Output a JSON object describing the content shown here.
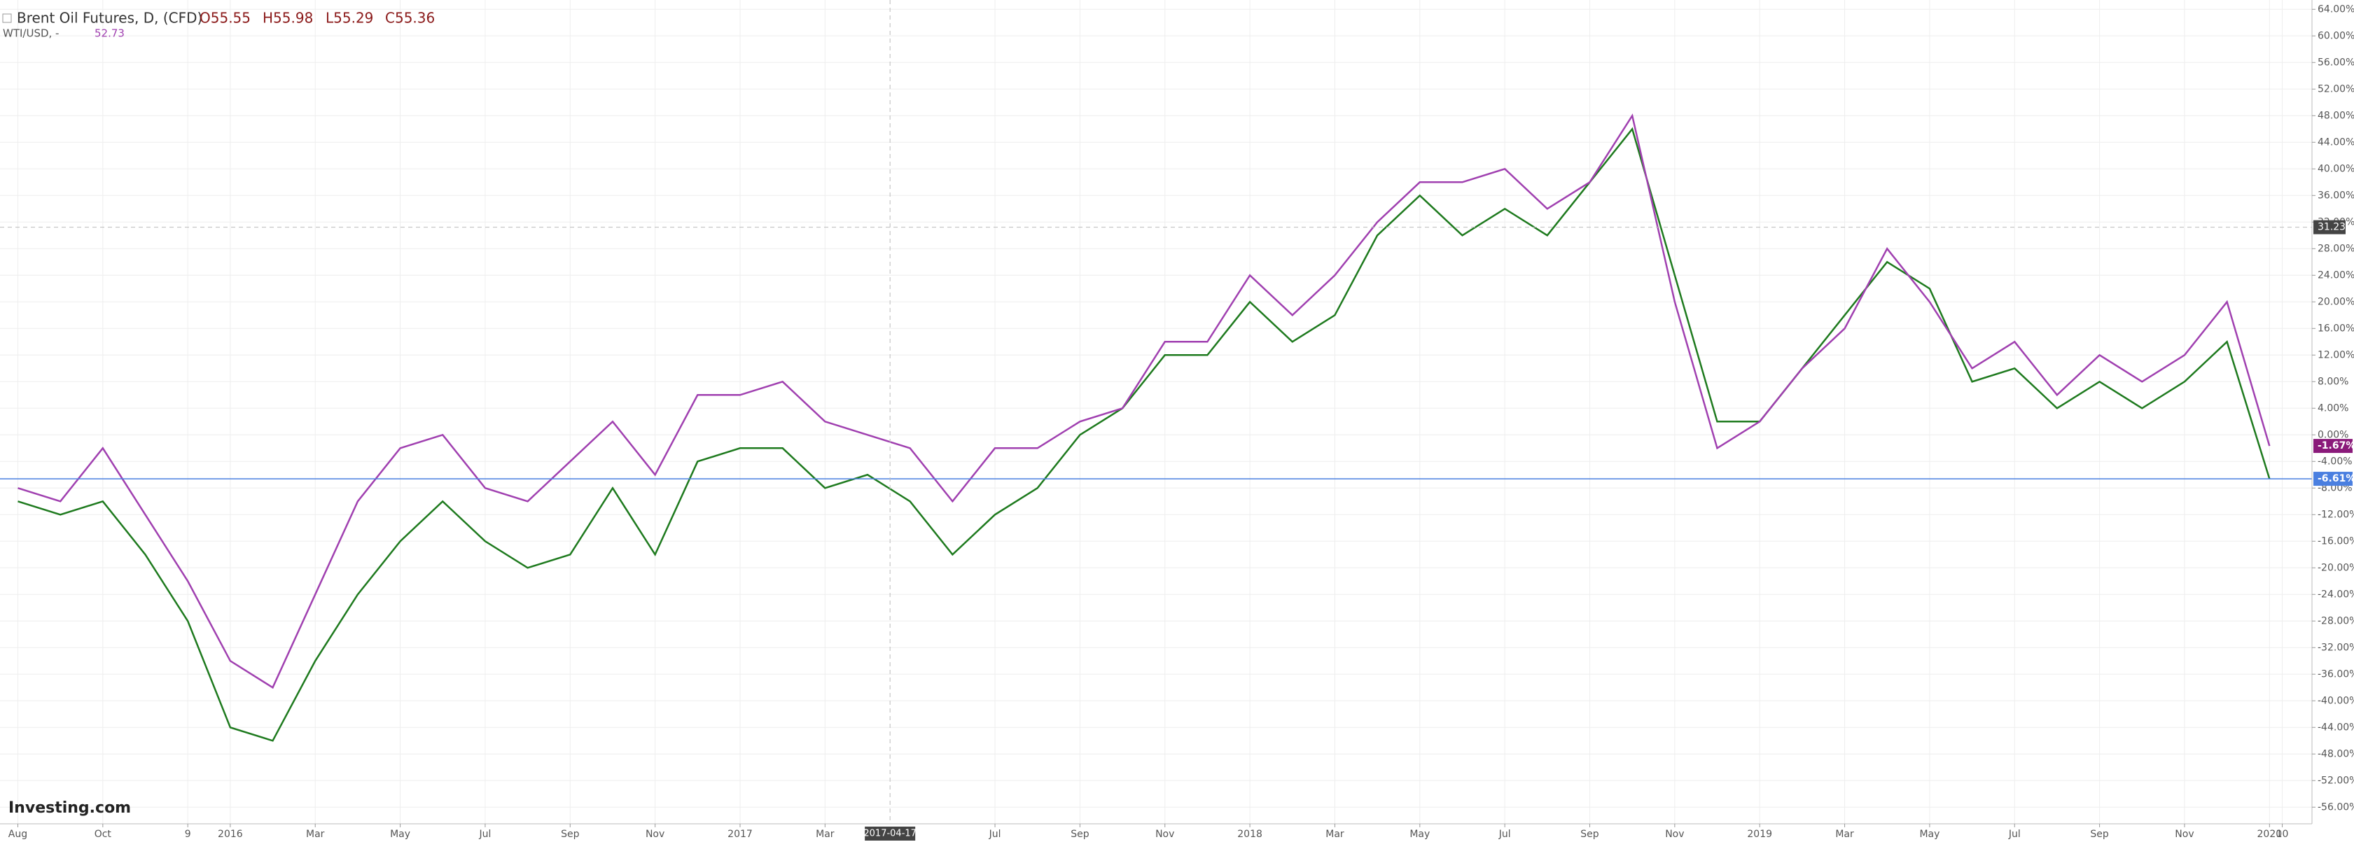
{
  "header": {
    "title": "Brent Oil Futures, D, (CFD)",
    "open": "O55.55",
    "high": "H55.98",
    "low": "L55.29",
    "close": "C55.36",
    "compare": "WTI/USD, -",
    "compare_value": "52.73",
    "brand": "Investing.com"
  },
  "chart_data": {
    "type": "line",
    "x": [
      0,
      1,
      2,
      3,
      4,
      5,
      6,
      7,
      8,
      9,
      10,
      11,
      12,
      13,
      14,
      15,
      16,
      17,
      18,
      19,
      20,
      21,
      22,
      23,
      24,
      25,
      26,
      27,
      28,
      29,
      30,
      31,
      32,
      33,
      34,
      35,
      36,
      37,
      38,
      39,
      40,
      41,
      42,
      43,
      44,
      45,
      46,
      47,
      48,
      49,
      50,
      51,
      52,
      53
    ],
    "series": [
      {
        "name": "Brent Oil Futures",
        "color": "#1e7a1e",
        "last_value_label": "-6.61%",
        "badge_color": "#4a7fe0",
        "values": [
          -10,
          -12,
          -10,
          -18,
          -28,
          -44,
          -46,
          -34,
          -24,
          -16,
          -10,
          -16,
          -20,
          -18,
          -8,
          -18,
          -4,
          -2,
          -2,
          -8,
          -6,
          -10,
          -18,
          -12,
          -8,
          0,
          4,
          12,
          12,
          20,
          14,
          18,
          30,
          36,
          30,
          34,
          30,
          38,
          46,
          24,
          2,
          2,
          10,
          18,
          26,
          22,
          8,
          10,
          4,
          8,
          4,
          8,
          14,
          -6.61
        ]
      },
      {
        "name": "WTI/USD",
        "color": "#a040b0",
        "last_value_label": "-1.67%",
        "badge_color": "#8a1a7a",
        "values": [
          -8,
          -10,
          -2,
          -12,
          -22,
          -34,
          -38,
          -24,
          -10,
          -2,
          0,
          -8,
          -10,
          -4,
          2,
          -6,
          6,
          6,
          8,
          2,
          0,
          -2,
          -10,
          -2,
          -2,
          2,
          4,
          14,
          14,
          24,
          18,
          24,
          32,
          38,
          38,
          40,
          34,
          38,
          48,
          20,
          -2,
          2,
          10,
          16,
          28,
          20,
          10,
          14,
          6,
          12,
          8,
          12,
          20,
          -1.67
        ]
      }
    ],
    "xlim": [
      -0.42,
      54.0
    ],
    "xticks": [
      {
        "value": 0,
        "label": "Aug"
      },
      {
        "value": 2,
        "label": "Oct"
      },
      {
        "value": 4,
        "label": "9"
      },
      {
        "value": 5,
        "label": "2016"
      },
      {
        "value": 7,
        "label": "Mar"
      },
      {
        "value": 9,
        "label": "May"
      },
      {
        "value": 11,
        "label": "Jul"
      },
      {
        "value": 13,
        "label": "Sep"
      },
      {
        "value": 15,
        "label": "Nov"
      },
      {
        "value": 17,
        "label": "2017"
      },
      {
        "value": 19,
        "label": "Mar"
      },
      {
        "value": 23,
        "label": "Jul"
      },
      {
        "value": 25,
        "label": "Sep"
      },
      {
        "value": 27,
        "label": "Nov"
      },
      {
        "value": 29,
        "label": "2018"
      },
      {
        "value": 31,
        "label": "Mar"
      },
      {
        "value": 33,
        "label": "May"
      },
      {
        "value": 35,
        "label": "Jul"
      },
      {
        "value": 37,
        "label": "Sep"
      },
      {
        "value": 39,
        "label": "Nov"
      },
      {
        "value": 41,
        "label": "2019"
      },
      {
        "value": 43,
        "label": "Mar"
      },
      {
        "value": 45,
        "label": "May"
      },
      {
        "value": 47,
        "label": "Jul"
      },
      {
        "value": 49,
        "label": "Sep"
      },
      {
        "value": 51,
        "label": "Nov"
      },
      {
        "value": 53,
        "label": "2020"
      },
      {
        "value": 53.3,
        "label": "10"
      }
    ],
    "ylim": [
      -58.5,
      65.4
    ],
    "yticks": [
      {
        "value": 64,
        "label": "64.00%"
      },
      {
        "value": 60,
        "label": "60.00%"
      },
      {
        "value": 56,
        "label": "56.00%"
      },
      {
        "value": 52,
        "label": "52.00%"
      },
      {
        "value": 48,
        "label": "48.00%"
      },
      {
        "value": 44,
        "label": "44.00%"
      },
      {
        "value": 40,
        "label": "40.00%"
      },
      {
        "value": 36,
        "label": "36.00%"
      },
      {
        "value": 32,
        "label": "32.00%"
      },
      {
        "value": 28,
        "label": "28.00%"
      },
      {
        "value": 24,
        "label": "24.00%"
      },
      {
        "value": 20,
        "label": "20.00%"
      },
      {
        "value": 16,
        "label": "16.00%"
      },
      {
        "value": 12,
        "label": "12.00%"
      },
      {
        "value": 8,
        "label": "8.00%"
      },
      {
        "value": 4,
        "label": "4.00%"
      },
      {
        "value": 0,
        "label": "0.00%"
      },
      {
        "value": -4,
        "label": "-4.00%"
      },
      {
        "value": -8,
        "label": "-8.00%"
      },
      {
        "value": -12,
        "label": "-12.00%"
      },
      {
        "value": -16,
        "label": "-16.00%"
      },
      {
        "value": -20,
        "label": "-20.00%"
      },
      {
        "value": -24,
        "label": "-24.00%"
      },
      {
        "value": -28,
        "label": "-28.00%"
      },
      {
        "value": -32,
        "label": "-32.00%"
      },
      {
        "value": -36,
        "label": "-36.00%"
      },
      {
        "value": -40,
        "label": "-40.00%"
      },
      {
        "value": -44,
        "label": "-44.00%"
      },
      {
        "value": -48,
        "label": "-48.00%"
      },
      {
        "value": -52,
        "label": "-52.00%"
      },
      {
        "value": -56,
        "label": "-56.00%"
      }
    ],
    "grid": true,
    "crosshair": {
      "x": {
        "value": 20.53,
        "label": "2017-04-17"
      },
      "y": 31.23
    }
  }
}
